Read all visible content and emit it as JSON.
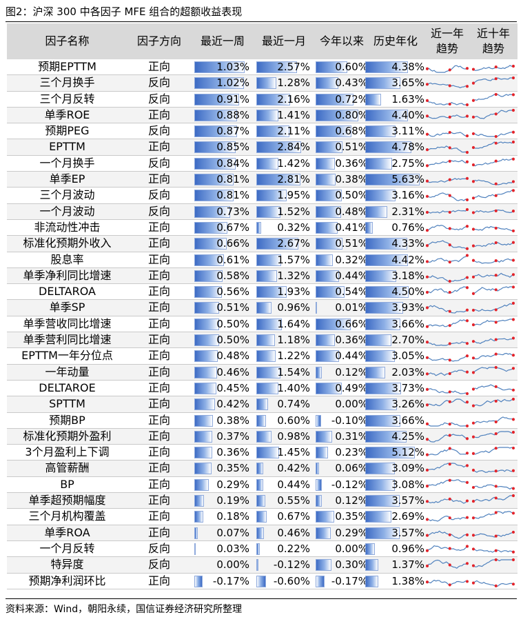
{
  "title": "图2：沪深 300 中各因子 MFE 组合的超额收益表现",
  "note": "资料来源：Wind，朝阳永续，国信证券经济研究所整理",
  "headers": {
    "name": "因子名称",
    "direction": "因子方向",
    "week": "最近一周",
    "month": "最近一月",
    "ytd": "今年以来",
    "annual": "历史年化",
    "trend1y": "近一年\n趋势",
    "trend10y": "近十年\n趋势"
  },
  "colors": {
    "bar_dark": "#3d6bc4",
    "bar_light": "#8eb0e6",
    "bar_border": "#8faadc",
    "spark_line": "#4f81bd",
    "spark_marker": "#e3242b",
    "header_bg": "#d9d9d9"
  },
  "rows": [
    {
      "name": "预期EPTTM",
      "dir": "正向",
      "week": "1.03%",
      "month": "2.57%",
      "ytd": "0.60%",
      "annual": "4.38%"
    },
    {
      "name": "三个月换手",
      "dir": "反向",
      "week": "1.02%",
      "month": "1.28%",
      "ytd": "0.43%",
      "annual": "3.65%"
    },
    {
      "name": "三个月反转",
      "dir": "反向",
      "week": "0.91%",
      "month": "2.16%",
      "ytd": "0.72%",
      "annual": "1.63%"
    },
    {
      "name": "单季ROE",
      "dir": "正向",
      "week": "0.88%",
      "month": "1.41%",
      "ytd": "0.80%",
      "annual": "4.40%"
    },
    {
      "name": "预期PEG",
      "dir": "反向",
      "week": "0.87%",
      "month": "2.11%",
      "ytd": "0.68%",
      "annual": "3.11%"
    },
    {
      "name": "EPTTM",
      "dir": "正向",
      "week": "0.85%",
      "month": "2.84%",
      "ytd": "0.51%",
      "annual": "4.78%"
    },
    {
      "name": "一个月换手",
      "dir": "反向",
      "week": "0.84%",
      "month": "1.42%",
      "ytd": "0.36%",
      "annual": "2.75%"
    },
    {
      "name": "单季EP",
      "dir": "正向",
      "week": "0.81%",
      "month": "2.81%",
      "ytd": "0.38%",
      "annual": "5.63%"
    },
    {
      "name": "三个月波动",
      "dir": "反向",
      "week": "0.81%",
      "month": "1.95%",
      "ytd": "0.50%",
      "annual": "3.16%"
    },
    {
      "name": "一个月波动",
      "dir": "反向",
      "week": "0.73%",
      "month": "1.52%",
      "ytd": "0.48%",
      "annual": "2.31%"
    },
    {
      "name": "非流动性冲击",
      "dir": "正向",
      "week": "0.67%",
      "month": "0.32%",
      "ytd": "0.41%",
      "annual": "0.76%"
    },
    {
      "name": "标准化预期外收入",
      "dir": "正向",
      "week": "0.66%",
      "month": "2.67%",
      "ytd": "0.51%",
      "annual": "4.33%"
    },
    {
      "name": "股息率",
      "dir": "正向",
      "week": "0.61%",
      "month": "1.57%",
      "ytd": "0.32%",
      "annual": "4.42%"
    },
    {
      "name": "单季净利同比增速",
      "dir": "正向",
      "week": "0.58%",
      "month": "1.32%",
      "ytd": "0.44%",
      "annual": "3.18%"
    },
    {
      "name": "DELTAROA",
      "dir": "正向",
      "week": "0.56%",
      "month": "1.93%",
      "ytd": "0.54%",
      "annual": "4.50%"
    },
    {
      "name": "单季SP",
      "dir": "正向",
      "week": "0.51%",
      "month": "0.96%",
      "ytd": "0.01%",
      "annual": "3.93%"
    },
    {
      "name": "单季营收同比增速",
      "dir": "正向",
      "week": "0.50%",
      "month": "1.64%",
      "ytd": "0.66%",
      "annual": "3.66%"
    },
    {
      "name": "单季营利同比增速",
      "dir": "正向",
      "week": "0.50%",
      "month": "1.18%",
      "ytd": "0.36%",
      "annual": "2.70%"
    },
    {
      "name": "EPTTM一年分位点",
      "dir": "正向",
      "week": "0.48%",
      "month": "1.22%",
      "ytd": "0.44%",
      "annual": "3.05%"
    },
    {
      "name": "一年动量",
      "dir": "正向",
      "week": "0.46%",
      "month": "1.54%",
      "ytd": "0.12%",
      "annual": "2.03%"
    },
    {
      "name": "DELTAROE",
      "dir": "正向",
      "week": "0.45%",
      "month": "1.40%",
      "ytd": "0.49%",
      "annual": "3.73%"
    },
    {
      "name": "SPTTM",
      "dir": "正向",
      "week": "0.42%",
      "month": "0.74%",
      "ytd": "0.00%",
      "annual": "3.26%"
    },
    {
      "name": "预期BP",
      "dir": "正向",
      "week": "0.38%",
      "month": "0.60%",
      "ytd": "-0.10%",
      "annual": "3.66%"
    },
    {
      "name": "标准化预期外盈利",
      "dir": "正向",
      "week": "0.37%",
      "month": "0.98%",
      "ytd": "0.31%",
      "annual": "4.25%"
    },
    {
      "name": "3个月盈利上下调",
      "dir": "正向",
      "week": "0.36%",
      "month": "1.45%",
      "ytd": "0.23%",
      "annual": "5.12%"
    },
    {
      "name": "高管薪酬",
      "dir": "正向",
      "week": "0.35%",
      "month": "0.42%",
      "ytd": "0.06%",
      "annual": "3.09%"
    },
    {
      "name": "BP",
      "dir": "正向",
      "week": "0.29%",
      "month": "0.44%",
      "ytd": "-0.12%",
      "annual": "3.08%"
    },
    {
      "name": "单季超预期幅度",
      "dir": "正向",
      "week": "0.19%",
      "month": "0.55%",
      "ytd": "0.12%",
      "annual": "3.57%"
    },
    {
      "name": "三个月机构覆盖",
      "dir": "正向",
      "week": "0.18%",
      "month": "0.67%",
      "ytd": "0.35%",
      "annual": "2.69%"
    },
    {
      "name": "单季ROA",
      "dir": "正向",
      "week": "0.07%",
      "month": "0.46%",
      "ytd": "0.29%",
      "annual": "3.57%"
    },
    {
      "name": "一个月反转",
      "dir": "反向",
      "week": "0.03%",
      "month": "0.22%",
      "ytd": "0.00%",
      "annual": "0.96%"
    },
    {
      "name": "特异度",
      "dir": "反向",
      "week": "0.00%",
      "month": "-0.12%",
      "ytd": "0.30%",
      "annual": "1.37%"
    },
    {
      "name": "预期净利润环比",
      "dir": "正向",
      "week": "-0.17%",
      "month": "-0.60%",
      "ytd": "-0.17%",
      "annual": "1.38%"
    }
  ]
}
